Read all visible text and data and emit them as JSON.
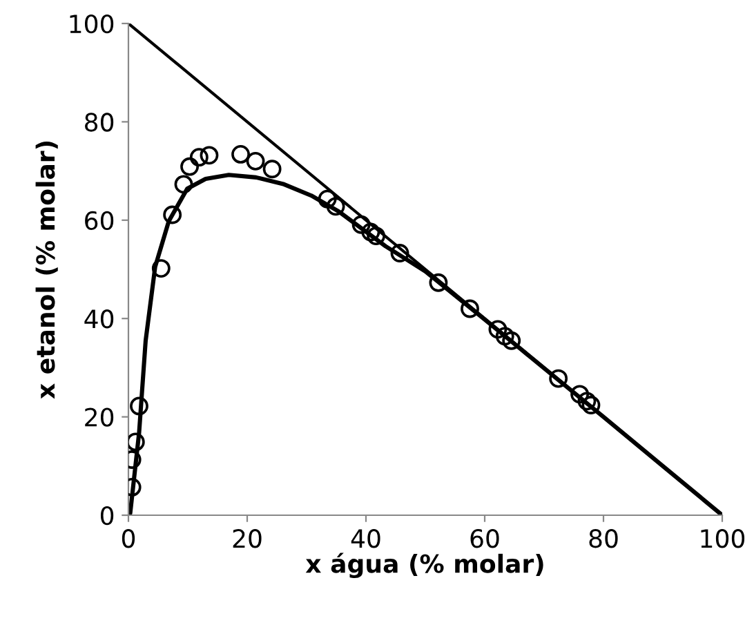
{
  "chart_data": {
    "type": "scatter",
    "xlabel": "x água (% molar)",
    "ylabel": "x etanol (% molar)",
    "xlim": [
      0,
      100
    ],
    "ylim": [
      0,
      100
    ],
    "xticks": [
      0,
      20,
      40,
      60,
      80,
      100
    ],
    "yticks": [
      0,
      20,
      40,
      60,
      80,
      100
    ],
    "grid": false,
    "legend": false,
    "series": [
      {
        "marker": "circle",
        "color": "#000000",
        "x": [
          0.6,
          0.6,
          1.2,
          1.8,
          5.5,
          7.4,
          9.3,
          10.3,
          11.9,
          13.6,
          18.9,
          21.4,
          24.2,
          33.5,
          34.9,
          39.2,
          40.8,
          41.7,
          45.7,
          52.2,
          57.5,
          62.2,
          63.4,
          64.5,
          72.4,
          76.0,
          77.2,
          77.9
        ],
        "values": [
          5.7,
          11.3,
          14.9,
          22.2,
          50.2,
          61.1,
          67.3,
          70.9,
          72.8,
          73.2,
          73.4,
          72.0,
          70.4,
          64.3,
          62.8,
          59.1,
          57.6,
          56.8,
          53.3,
          47.3,
          42.0,
          37.8,
          36.4,
          35.5,
          27.8,
          24.6,
          23.2,
          22.4
        ]
      },
      {
        "type": "line",
        "marker": "none",
        "line_style": "solid",
        "color": "#000000",
        "x": [
          0,
          0.3,
          1.8,
          2.9,
          4.5,
          6.8,
          9.9,
          13,
          16.9,
          21.5,
          26.2,
          30.8,
          35.5,
          43.3,
          50,
          60,
          70,
          80,
          90,
          100
        ],
        "values": [
          0,
          0.4,
          16.8,
          35.5,
          50.5,
          59.8,
          66.4,
          68.4,
          69.2,
          68.7,
          67.3,
          65.0,
          61.7,
          54.7,
          49.6,
          39.8,
          29.9,
          20.0,
          10,
          0
        ]
      },
      {
        "type": "line",
        "marker": "none",
        "line_style": "solid",
        "color": "#000000",
        "x": [
          0,
          100
        ],
        "values": [
          100,
          0
        ]
      }
    ]
  }
}
